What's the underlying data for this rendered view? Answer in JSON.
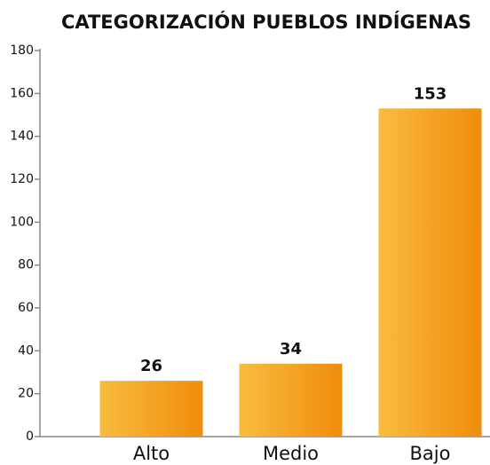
{
  "chart_data": {
    "type": "bar",
    "title": "CATEGORIZACIÓN PUEBLOS INDÍGENAS",
    "categories": [
      "Alto",
      "Medio",
      "Bajo"
    ],
    "values": [
      26,
      34,
      153
    ],
    "color_gradient": [
      "#f9bc3e",
      "#f08c0c"
    ],
    "ylim": [
      0,
      180
    ],
    "yticks": [
      0,
      20,
      40,
      60,
      80,
      100,
      120,
      140,
      160,
      180
    ],
    "grid": false
  }
}
